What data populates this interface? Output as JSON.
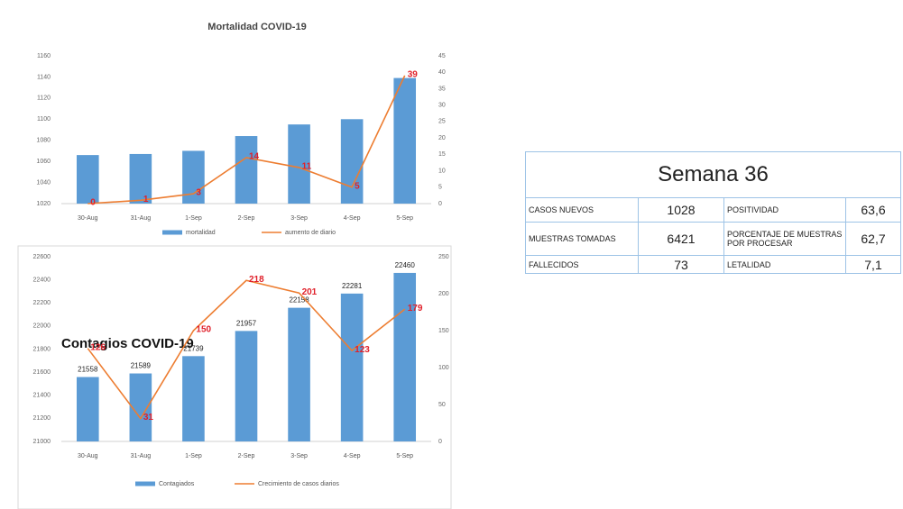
{
  "chart_data": [
    {
      "type": "bar",
      "title": "Mortalidad COVID-19",
      "categories": [
        "30-Aug",
        "31-Aug",
        "1-Sep",
        "2-Sep",
        "3-Sep",
        "4-Sep",
        "5-Sep"
      ],
      "series": [
        {
          "name": "mortalidad",
          "color": "#5b9bd5",
          "values": [
            1066,
            1067,
            1070,
            1084,
            1095,
            1100,
            1139
          ],
          "labels": false
        },
        {
          "name": "aumento de diario",
          "color": "#ed7d31",
          "axis": "y2",
          "values": [
            0,
            1,
            3,
            14,
            11,
            5,
            39
          ],
          "labels": true
        }
      ],
      "ylim": [
        1020,
        1160
      ],
      "yticks": [
        1020,
        1040,
        1060,
        1080,
        1100,
        1120,
        1140,
        1160
      ],
      "y2lim": [
        0,
        45
      ],
      "y2ticks": [
        0,
        5,
        10,
        15,
        20,
        25,
        30,
        35,
        40,
        45
      ]
    },
    {
      "type": "bar",
      "title": "Contagios COVID-19",
      "categories": [
        "30-Aug",
        "31-Aug",
        "1-Sep",
        "2-Sep",
        "3-Sep",
        "4-Sep",
        "5-Sep"
      ],
      "series": [
        {
          "name": "Contagiados",
          "color": "#5b9bd5",
          "values": [
            21558,
            21589,
            21739,
            21957,
            22158,
            22281,
            22460
          ],
          "labels": true
        },
        {
          "name": "Crecimiento de casos diarios",
          "color": "#ed7d31",
          "axis": "y2",
          "values": [
            126,
            31,
            150,
            218,
            201,
            123,
            179
          ],
          "labels": true
        }
      ],
      "ylim": [
        21000,
        22600
      ],
      "yticks": [
        21000,
        21200,
        21400,
        21600,
        21800,
        22000,
        22200,
        22400,
        22600
      ],
      "y2lim": [
        0,
        250
      ],
      "y2ticks": [
        0,
        50,
        100,
        150,
        200,
        250
      ]
    }
  ],
  "table": {
    "title": "Semana 36",
    "rows": [
      [
        "CASOS NUEVOS",
        1028,
        "POSITIVIDAD",
        "63,6"
      ],
      [
        "MUESTRAS TOMADAS",
        6421,
        "PORCENTAJE DE MUESTRAS POR PROCESAR",
        "62,7"
      ],
      [
        "FALLECIDOS",
        73,
        "LETALIDAD",
        "7,1"
      ]
    ]
  }
}
